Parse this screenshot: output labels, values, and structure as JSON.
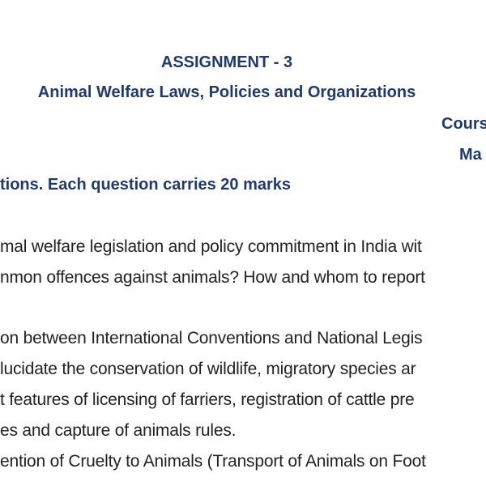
{
  "header": {
    "title": "ASSIGNMENT - 3",
    "subtitle": "Animal Welfare Laws, Policies and Organizations",
    "course_fragment": "Cours",
    "marks_fragment": "Ma",
    "instruction": "tions. Each question carries 20 marks"
  },
  "body": {
    "lines": [
      "mal welfare legislation and policy commitment in India wit",
      "nmon offences against animals? How and whom to report",
      "on between International Conventions and National Legis",
      "lucidate the conservation of wildlife, migratory species ar",
      "t features of licensing of farriers, registration of cattle pre",
      "es and capture of animals rules.",
      "ention of Cruelty to Animals (Transport of Animals on Foot"
    ]
  },
  "colors": {
    "heading": "#1f3a6b",
    "text": "#222222"
  }
}
